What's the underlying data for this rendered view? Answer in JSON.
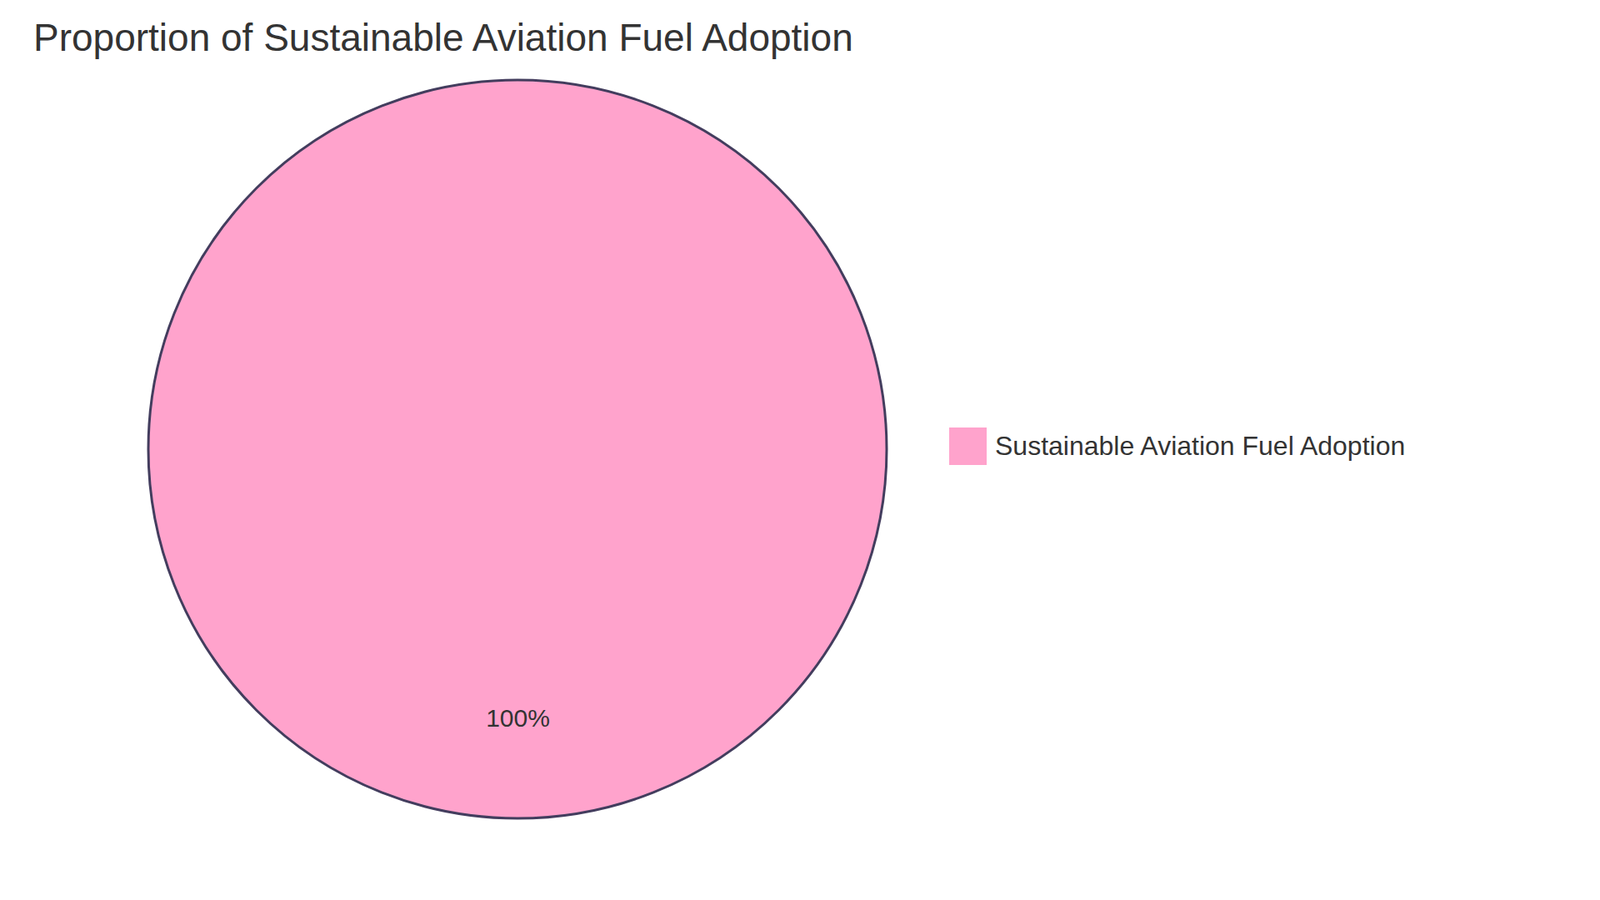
{
  "chart_data": {
    "type": "pie",
    "title": "Proportion of Sustainable Aviation Fuel Adoption",
    "categories": [
      "Sustainable Aviation Fuel Adoption"
    ],
    "values": [
      100
    ],
    "value_labels": [
      "100%"
    ],
    "colors": [
      "#ffa3cc"
    ],
    "data_labels": true,
    "legend": "right"
  }
}
